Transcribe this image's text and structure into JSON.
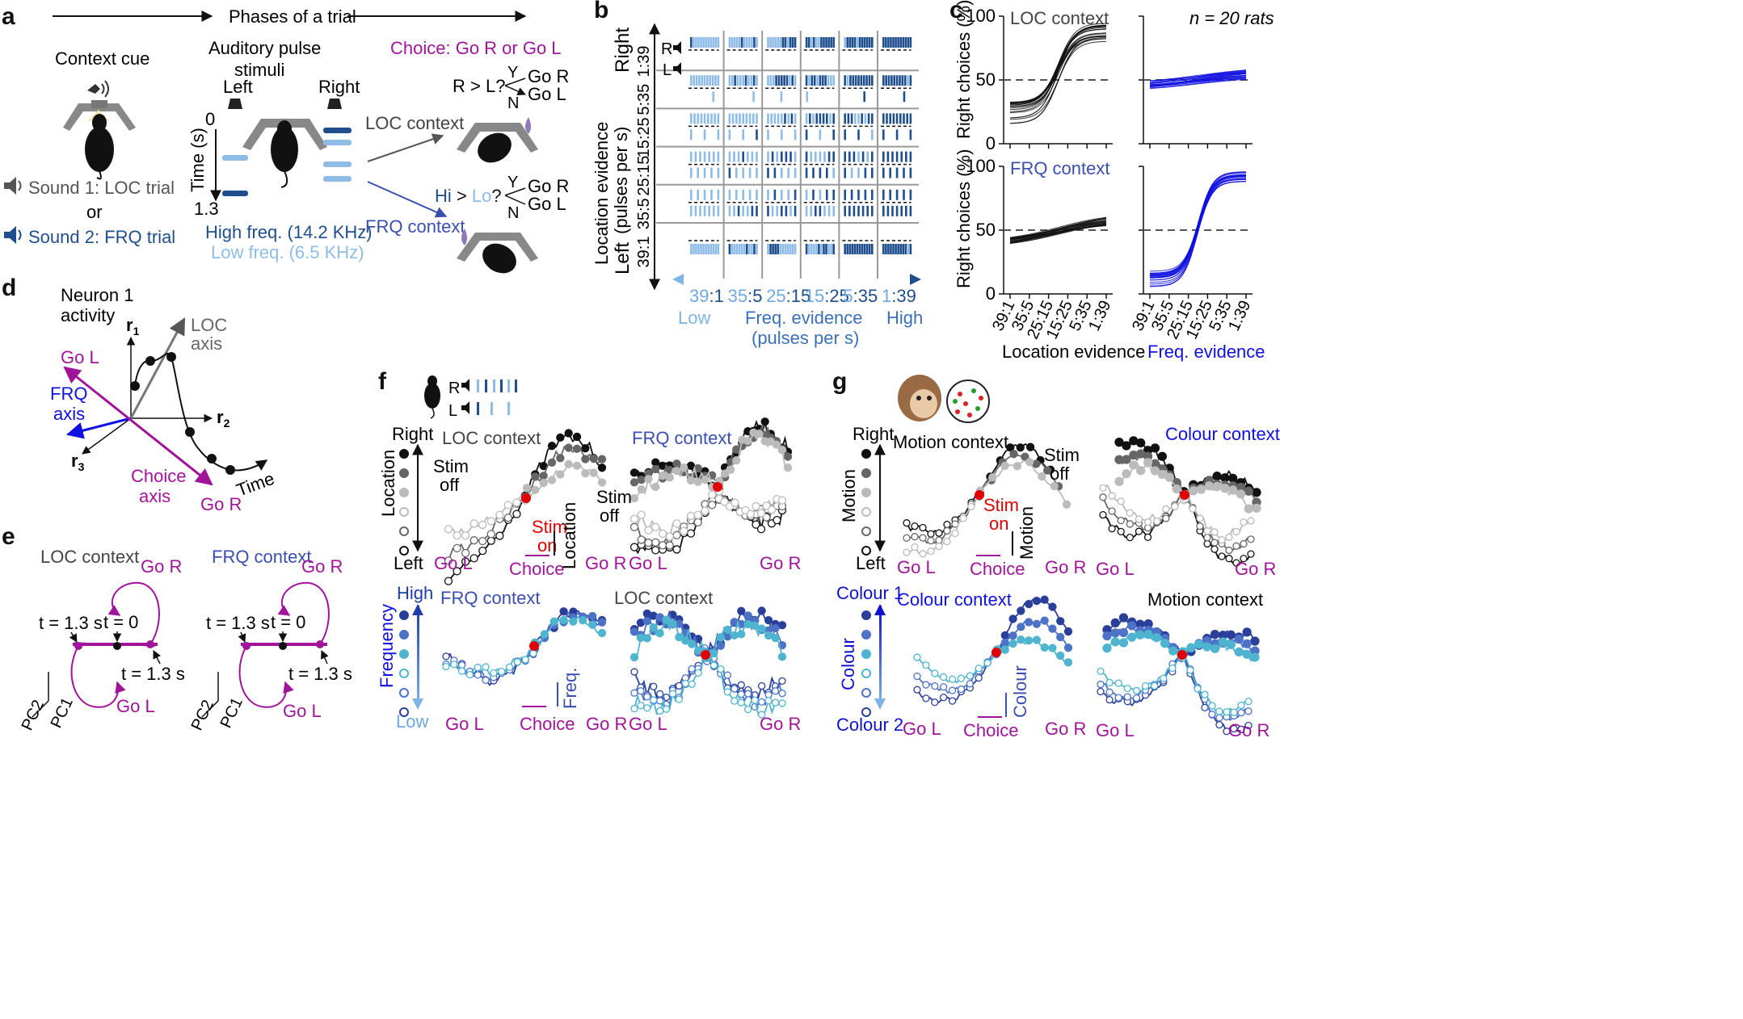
{
  "panel_labels": {
    "a": "a",
    "b": "b",
    "c": "c",
    "d": "d",
    "e": "e",
    "f": "f",
    "g": "g"
  },
  "panel_a": {
    "phases": "Phases of a trial",
    "context_cue": "Context cue",
    "auditory": [
      "Auditory pulse",
      "stimuli"
    ],
    "choice": "Choice: Go R or Go L",
    "left": "Left",
    "right": "Right",
    "time_axis": "Time (s)",
    "t0": "0",
    "t1": "1.3",
    "sound1": "Sound 1: LOC trial",
    "or": "or",
    "sound2": "Sound 2: FRQ trial",
    "high_freq": "High freq. (14.2 KHz)",
    "low_freq": "Low freq. (6.5 KHz)",
    "loc_context": "LOC context",
    "frq_context": "FRQ context",
    "rl_question": "R > L?",
    "hilo_question": [
      "Hi",
      " > ",
      "Lo",
      "?"
    ],
    "y": "Y",
    "n": "N",
    "go_r": "Go R",
    "go_l": "Go L",
    "colors": {
      "high": "#1f4e8c",
      "low": "#8fbce6",
      "magenta": "#a0149a",
      "blue": "#3a4fb0"
    }
  },
  "panel_b": {
    "row_labels": [
      "1:39",
      "5:35",
      "15:25",
      "25:15",
      "35:5",
      "39:1"
    ],
    "right": "Right",
    "left": "Left",
    "y_axis": [
      "Location evidence",
      "(pulses per s)"
    ],
    "col_labels": [
      [
        "39",
        ":1"
      ],
      [
        "35",
        ":5"
      ],
      [
        "25",
        ":15"
      ],
      [
        "15",
        ":25"
      ],
      [
        "5",
        ":35"
      ],
      [
        "1",
        ":39"
      ]
    ],
    "low": "Low",
    "high": "High",
    "x_axis": [
      "Freq. evidence",
      "(pulses per s)"
    ],
    "r": "R",
    "l": "L"
  },
  "panel_c": {
    "loc_context": "LOC context",
    "frq_context": "FRQ context",
    "n_rats": "n = 20 rats",
    "y_axis": "Right choices (%)",
    "y_ticks": [
      "0",
      "50",
      "100"
    ],
    "x_ticks": [
      "39:1",
      "35:5",
      "25:15",
      "15:25",
      "5:35",
      "1:39"
    ],
    "x_loc": "Location evidence",
    "x_frq": "Freq. evidence"
  },
  "panel_d": {
    "neuron": [
      "Neuron 1",
      "activity"
    ],
    "r1": "r",
    "r1s": "1",
    "r2": "r",
    "r2s": "2",
    "r3": "r",
    "r3s": "3",
    "loc_axis": [
      "LOC",
      "axis"
    ],
    "go_l": "Go L",
    "frq_axis": [
      "FRQ",
      "axis"
    ],
    "choice_axis": [
      "Choice",
      "axis"
    ],
    "go_r": "Go R",
    "time": "Time"
  },
  "panel_e": {
    "loc_context": "LOC context",
    "frq_context": "FRQ context",
    "go_r": "Go R",
    "go_l": "Go L",
    "t13": "t = 1.3 s",
    "t0": "t = 0",
    "pc1": "PC1",
    "pc2": "PC2"
  },
  "panel_f": {
    "r": "R",
    "l": "L",
    "right": "Right",
    "left": "Left",
    "location": "Location",
    "high": "High",
    "low": "Low",
    "frequency": "Frequency",
    "loc_context": "LOC context",
    "frq_context": "FRQ context",
    "stim_off": [
      "Stim",
      "off"
    ],
    "stim_on": [
      "Stim",
      "on"
    ],
    "choice": "Choice",
    "loc_scale": "Location",
    "freq_scale": "Freq.",
    "go_l": "Go L",
    "go_r": "Go R"
  },
  "panel_g": {
    "right": "Right",
    "left": "Left",
    "motion": "Motion",
    "colour1": "Colour 1",
    "colour2": "Colour 2",
    "colour": "Colour",
    "motion_context": "Motion context",
    "colour_context": "Colour context",
    "stim_off": [
      "Stim",
      "off"
    ],
    "stim_on": [
      "Stim",
      "on"
    ],
    "choice": "Choice",
    "go_l": "Go L",
    "go_r": "Go R"
  }
}
